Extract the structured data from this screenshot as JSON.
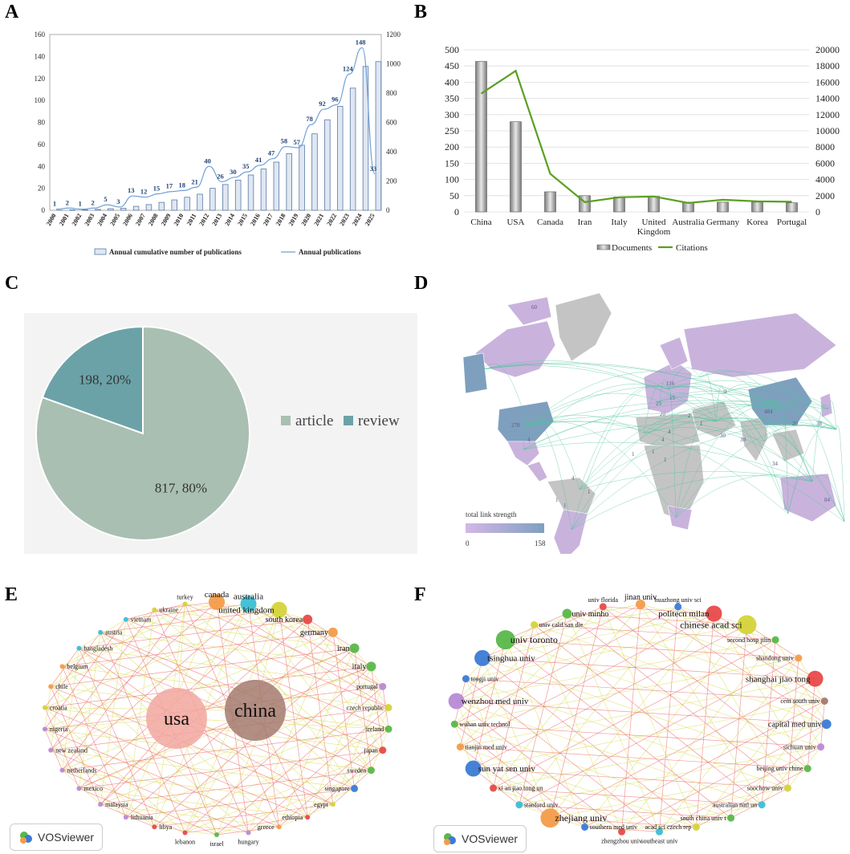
{
  "panels": {
    "A": "A",
    "B": "B",
    "C": "C",
    "D": "D",
    "E": "E",
    "F": "F"
  },
  "chart_data": [
    {
      "id": "A",
      "type": "bar+line",
      "categories": [
        "2000",
        "2001",
        "2002",
        "2003",
        "2004",
        "2005",
        "2006",
        "2007",
        "2008",
        "2009",
        "2010",
        "2011",
        "2012",
        "2013",
        "2014",
        "2015",
        "2016",
        "2017",
        "2018",
        "2019",
        "2020",
        "2021",
        "2022",
        "2023",
        "2024",
        "2025"
      ],
      "series": [
        {
          "name": "Annual cumulative number of publications",
          "axis": "right",
          "type": "bar",
          "values": [
            1,
            3,
            4,
            6,
            11,
            14,
            27,
            39,
            54,
            71,
            89,
            110,
            150,
            176,
            206,
            241,
            282,
            329,
            387,
            444,
            522,
            618,
            710,
            834,
            982,
            1015
          ]
        },
        {
          "name": "Annual publications",
          "axis": "left",
          "type": "line",
          "values": [
            1,
            2,
            1,
            2,
            5,
            3,
            13,
            12,
            15,
            17,
            18,
            21,
            40,
            26,
            30,
            35,
            41,
            47,
            58,
            57,
            78,
            92,
            96,
            124,
            148,
            33
          ]
        }
      ],
      "data_labels": [
        "1",
        "2",
        "1",
        "2",
        "5",
        "3",
        "13",
        "12",
        "15",
        "17",
        "18",
        "21",
        "40",
        "26",
        "30",
        "35",
        "41",
        "47",
        "58",
        "57",
        "78",
        "92",
        "96",
        "124",
        "148",
        "33"
      ],
      "ylim_left": [
        0,
        160
      ],
      "yticks_left": [
        "0",
        "20",
        "40",
        "60",
        "80",
        "100",
        "120",
        "140",
        "160"
      ],
      "ylim_right": [
        0,
        1200
      ],
      "yticks_right": [
        "0",
        "200",
        "400",
        "600",
        "800",
        "1000",
        "1200"
      ],
      "legend": [
        "Annual cumulative number of publications",
        "Annual publications"
      ]
    },
    {
      "id": "B",
      "type": "bar+line",
      "categories": [
        "China",
        "USA",
        "Canada",
        "Iran",
        "Italy",
        "United Kingdom",
        "Australia",
        "Germany",
        "Korea",
        "Portugal"
      ],
      "category_lines": [
        [
          "China"
        ],
        [
          "USA"
        ],
        [
          "Canada"
        ],
        [
          "Iran"
        ],
        [
          "Italy"
        ],
        [
          "United",
          "Kingdom"
        ],
        [
          "Australia"
        ],
        [
          "Germany"
        ],
        [
          "Korea"
        ],
        [
          "Portugal"
        ]
      ],
      "series": [
        {
          "name": "Documents",
          "axis": "left",
          "type": "bar",
          "values": [
            464,
            278,
            62,
            50,
            46,
            48,
            30,
            30,
            30,
            28
          ]
        },
        {
          "name": "Citations",
          "axis": "right",
          "type": "line",
          "values": [
            14600,
            17400,
            4700,
            1200,
            1800,
            1900,
            1100,
            1500,
            1300,
            1250
          ]
        }
      ],
      "ylim_left": [
        0,
        500
      ],
      "yticks_left": [
        "0",
        "50",
        "100",
        "150",
        "200",
        "250",
        "300",
        "350",
        "400",
        "450",
        "500"
      ],
      "ylim_right": [
        0,
        20000
      ],
      "yticks_right": [
        "0",
        "2000",
        "4000",
        "6000",
        "8000",
        "10000",
        "12000",
        "14000",
        "16000",
        "18000",
        "20000"
      ],
      "legend": [
        "Documents",
        "Citations"
      ]
    },
    {
      "id": "C",
      "type": "pie",
      "slices": [
        {
          "name": "article",
          "value": 817,
          "percent": 80,
          "label": "817, 80%",
          "color": "#a9bfb2"
        },
        {
          "name": "review",
          "value": 198,
          "percent": 20,
          "label": "198, 20%",
          "color": "#6ba2a8"
        }
      ],
      "legend": [
        "article",
        "review"
      ]
    }
  ],
  "map": {
    "legend_title": "total link strength",
    "legend_min": "0",
    "legend_max": "158",
    "labels": [
      "484",
      "278",
      "116",
      "60",
      "4",
      "4",
      "1",
      "1",
      "34",
      "20",
      "38",
      "9",
      "30",
      "4",
      "4",
      "84",
      "1",
      "1",
      "1",
      "1",
      "30",
      "25",
      "20",
      "15",
      "2",
      "1"
    ]
  },
  "network_E": {
    "nodes": [
      {
        "label": "china",
        "size": "xl",
        "color": "#a47a6e"
      },
      {
        "label": "usa",
        "size": "xl",
        "color": "#f2a7a0"
      },
      {
        "label": "canada",
        "size": "m",
        "color": "#f39c4a"
      },
      {
        "label": "australia",
        "size": "m",
        "color": "#3bbfd6"
      },
      {
        "label": "united kingdom",
        "size": "m",
        "color": "#d4d43a"
      },
      {
        "label": "south korea",
        "size": "s",
        "color": "#e84a4a"
      },
      {
        "label": "germany",
        "size": "s",
        "color": "#f39c4a"
      },
      {
        "label": "iran",
        "size": "s",
        "color": "#58b84a"
      },
      {
        "label": "italy",
        "size": "s",
        "color": "#58b84a"
      },
      {
        "label": "portugal",
        "size": "xs",
        "color": "#b88ad6"
      },
      {
        "label": "czech republic",
        "size": "xs",
        "color": "#d4d43a"
      },
      {
        "label": "ireland",
        "size": "xs",
        "color": "#58b84a"
      },
      {
        "label": "japan",
        "size": "xs",
        "color": "#e84a4a"
      },
      {
        "label": "sweden",
        "size": "xs",
        "color": "#58b84a"
      },
      {
        "label": "singapore",
        "size": "xs",
        "color": "#3b7bd6"
      },
      {
        "label": "egypt",
        "size": "xxs",
        "color": "#d4d43a"
      },
      {
        "label": "ethiopia",
        "size": "xxs",
        "color": "#e84a4a"
      },
      {
        "label": "greece",
        "size": "xxs",
        "color": "#f39c4a"
      },
      {
        "label": "hungary",
        "size": "xxs",
        "color": "#b88ad6"
      },
      {
        "label": "israel",
        "size": "xxs",
        "color": "#58b84a"
      },
      {
        "label": "lebanon",
        "size": "xxs",
        "color": "#e84a4a"
      },
      {
        "label": "libya",
        "size": "xxs",
        "color": "#e84a4a"
      },
      {
        "label": "lithuania",
        "size": "xxs",
        "color": "#b88ad6"
      },
      {
        "label": "malaysia",
        "size": "xxs",
        "color": "#b88ad6"
      },
      {
        "label": "mexico",
        "size": "xxs",
        "color": "#b88ad6"
      },
      {
        "label": "netherlands",
        "size": "xxs",
        "color": "#b88ad6"
      },
      {
        "label": "new zealand",
        "size": "xxs",
        "color": "#b88ad6"
      },
      {
        "label": "nigeria",
        "size": "xxs",
        "color": "#b88ad6"
      },
      {
        "label": "croatia",
        "size": "xxs",
        "color": "#d4d43a"
      },
      {
        "label": "chile",
        "size": "xxs",
        "color": "#f39c4a"
      },
      {
        "label": "belgium",
        "size": "xxs",
        "color": "#f39c4a"
      },
      {
        "label": "bangladesh",
        "size": "xxs",
        "color": "#3bbfd6"
      },
      {
        "label": "austria",
        "size": "xxs",
        "color": "#3bbfd6"
      },
      {
        "label": "vietnam",
        "size": "xxs",
        "color": "#3bbfd6"
      },
      {
        "label": "ukraine",
        "size": "xxs",
        "color": "#d4d43a"
      },
      {
        "label": "turkey",
        "size": "xxs",
        "color": "#d4d43a"
      }
    ]
  },
  "network_F": {
    "nodes": [
      {
        "label": "jinan univ",
        "size": "s",
        "color": "#f39c4a"
      },
      {
        "label": "huazhong univ sci",
        "size": "xs",
        "color": "#3b7bd6"
      },
      {
        "label": "politecn milan",
        "size": "m",
        "color": "#e84a4a"
      },
      {
        "label": "chinese acad sci",
        "size": "l",
        "color": "#d4d43a"
      },
      {
        "label": "second hosp jilin",
        "size": "xs",
        "color": "#58b84a"
      },
      {
        "label": "shandong univ",
        "size": "xs",
        "color": "#f39c4a"
      },
      {
        "label": "shanghai jiao tong",
        "size": "m",
        "color": "#e84a4a"
      },
      {
        "label": "cent south univ",
        "size": "xs",
        "color": "#a47a6e"
      },
      {
        "label": "capital med univ",
        "size": "s",
        "color": "#3b7bd6"
      },
      {
        "label": "sichuan univ",
        "size": "xs",
        "color": "#b88ad6"
      },
      {
        "label": "beijing univ chine",
        "size": "xs",
        "color": "#58b84a"
      },
      {
        "label": "soochow univ",
        "size": "xs",
        "color": "#d4d43a"
      },
      {
        "label": "australian natl un",
        "size": "xs",
        "color": "#3bbfd6"
      },
      {
        "label": "south china univ t",
        "size": "xs",
        "color": "#58b84a"
      },
      {
        "label": "acad sci czech rep",
        "size": "xs",
        "color": "#d4d43a"
      },
      {
        "label": "southeast univ",
        "size": "xs",
        "color": "#3bbfd6"
      },
      {
        "label": "zhengzhou univ",
        "size": "xs",
        "color": "#e84a4a"
      },
      {
        "label": "southern med univ",
        "size": "xs",
        "color": "#3b7bd6"
      },
      {
        "label": "zhejiang univ",
        "size": "l",
        "color": "#f39c4a"
      },
      {
        "label": "stanford univ",
        "size": "xs",
        "color": "#3bbfd6"
      },
      {
        "label": "xi an jiao tong un",
        "size": "xs",
        "color": "#e84a4a"
      },
      {
        "label": "sun yat sen univ",
        "size": "m",
        "color": "#3b7bd6"
      },
      {
        "label": "tianjin med univ",
        "size": "xs",
        "color": "#f39c4a"
      },
      {
        "label": "wuhan univ technol",
        "size": "xs",
        "color": "#58b84a"
      },
      {
        "label": "wenzhou med univ",
        "size": "m",
        "color": "#b88ad6"
      },
      {
        "label": "tongji univ",
        "size": "xs",
        "color": "#3b7bd6"
      },
      {
        "label": "tsinghua univ",
        "size": "m",
        "color": "#3b7bd6"
      },
      {
        "label": "univ toronto",
        "size": "l",
        "color": "#58b84a"
      },
      {
        "label": "univ calif san die",
        "size": "xs",
        "color": "#d4d43a"
      },
      {
        "label": "univ minho",
        "size": "s",
        "color": "#58b84a"
      },
      {
        "label": "univ florida",
        "size": "xs",
        "color": "#e84a4a"
      }
    ]
  },
  "vosviewer_label": "VOSviewer",
  "colors": {
    "bar_fill": "#dfe7f2",
    "bar_stroke": "#5a7aa8",
    "lineA": "#6ea0d8",
    "labelA": "#1f3f73",
    "lineB": "#5aa020",
    "barB": "#9a9a9a",
    "pie_article": "#a9bfb2",
    "pie_review": "#6ba2a8",
    "map_lilac": "#c9b3dc",
    "map_gray": "#c4c4c4",
    "map_blue": "#7f9fbf",
    "map_line": "#4cc39a"
  }
}
